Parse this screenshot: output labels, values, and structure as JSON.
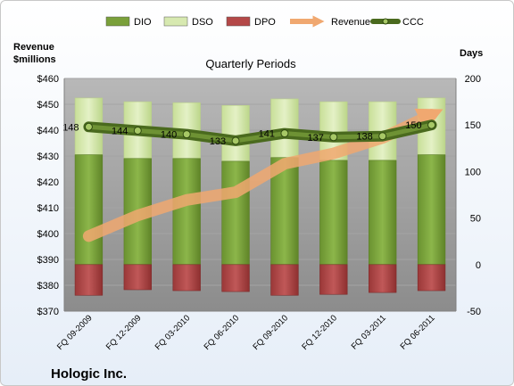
{
  "chart_data": {
    "type": "bar",
    "title": "Quarterly Periods",
    "company": "Hologic Inc.",
    "left_axis_label": [
      "Revenue",
      "$millions"
    ],
    "right_axis_label": "Days",
    "left_ylim": [
      370,
      460
    ],
    "left_ticks": [
      "$370",
      "$380",
      "$390",
      "$400",
      "$410",
      "$420",
      "$430",
      "$440",
      "$450",
      "$460"
    ],
    "right_ylim": [
      -50,
      200
    ],
    "right_ticks": [
      "-50",
      "0",
      "50",
      "100",
      "150",
      "200"
    ],
    "categories": [
      "FQ 09-2009",
      "FQ 12-2009",
      "FQ 03-2010",
      "FQ 06-2010",
      "FQ 09-2010",
      "FQ 12-2010",
      "FQ 03-2011",
      "FQ 06-2011"
    ],
    "legend": [
      "DIO",
      "DSO",
      "DPO",
      "Revenue",
      "CCC"
    ],
    "legend_position": "top",
    "series": [
      {
        "name": "DIO",
        "axis": "right",
        "color": "#7aa03a",
        "values": [
          118,
          114,
          114,
          111,
          115,
          112,
          112,
          118
        ]
      },
      {
        "name": "DSO",
        "axis": "right",
        "color": "#d7e9b0",
        "values": [
          61,
          61,
          60,
          60,
          63,
          63,
          63,
          61
        ]
      },
      {
        "name": "DPO",
        "axis": "right",
        "color": "#b44848",
        "values": [
          -33,
          -27,
          -28,
          -29,
          -33,
          -32,
          -30,
          -28
        ]
      },
      {
        "name": "Revenue",
        "axis": "left",
        "color": "#f0a870",
        "values": [
          399,
          407,
          413,
          416,
          427,
          431,
          437,
          446
        ]
      },
      {
        "name": "CCC",
        "axis": "right",
        "color": "#4a6a1e",
        "values": [
          148,
          144,
          140,
          133,
          141,
          137,
          138,
          150
        ]
      }
    ],
    "data_labels": [
      "148",
      "144",
      "140",
      "133",
      "141",
      "137",
      "138",
      "150"
    ],
    "grid": true
  }
}
